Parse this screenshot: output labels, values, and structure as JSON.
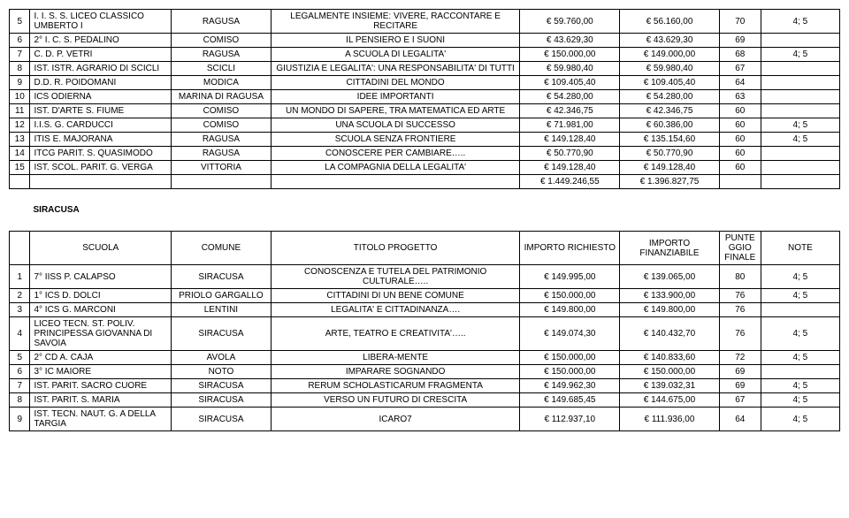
{
  "table1": {
    "rows": [
      {
        "n": "5",
        "sch": "I. I. S. S. LICEO CLASSICO  UMBERTO   I",
        "com": "RAGUSA",
        "tit": "LEGALMENTE   INSIEME: VIVERE, RACCONTARE E RECITARE",
        "i1": "€ 59.760,00",
        "i2": "€ 56.160,00",
        "p": "70",
        "note": "4; 5"
      },
      {
        "n": "6",
        "sch": "2° I. C. S. PEDALINO",
        "com": "COMISO",
        "tit": "IL PENSIERO E I SUONI",
        "i1": "€ 43.629,30",
        "i2": "€ 43.629,30",
        "p": "69",
        "note": ""
      },
      {
        "n": "7",
        "sch": "C. D. P. VETRI",
        "com": "RAGUSA",
        "tit": "A SCUOLA DI LEGALITA'",
        "i1": "€ 150.000,00",
        "i2": "€ 149.000,00",
        "p": "68",
        "note": "4; 5"
      },
      {
        "n": "8",
        "sch": "IST. ISTR. AGRARIO DI SCICLI",
        "com": "SCICLI",
        "tit": "GIUSTIZIA E LEGALITA':  UNA RESPONSABILITA' DI TUTTI",
        "i1": "€ 59.980,40",
        "i2": "€ 59.980,40",
        "p": "67",
        "note": ""
      },
      {
        "n": "9",
        "sch": "D.D. R. POIDOMANI",
        "com": "MODICA",
        "tit": "CITTADINI DEL MONDO",
        "i1": "€ 109.405,40",
        "i2": "€ 109.405,40",
        "p": "64",
        "note": ""
      },
      {
        "n": "10",
        "sch": "ICS ODIERNA",
        "com": "MARINA DI RAGUSA",
        "tit": "IDEE IMPORTANTI",
        "i1": "€ 54.280,00",
        "i2": "€ 54.280,00",
        "p": "63",
        "note": ""
      },
      {
        "n": "11",
        "sch": "IST. D'ARTE S. FIUME",
        "com": "COMISO",
        "tit": "UN MONDO DI SAPERE, TRA MATEMATICA ED ARTE",
        "i1": "€ 42.346,75",
        "i2": "€ 42.346,75",
        "p": "60",
        "note": ""
      },
      {
        "n": "12",
        "sch": "I.I.S. G. CARDUCCI",
        "com": "COMISO",
        "tit": "UNA SCUOLA DI SUCCESSO",
        "i1": "€ 71.981,00",
        "i2": "€ 60.386,00",
        "p": "60",
        "note": "4; 5"
      },
      {
        "n": "13",
        "sch": "ITIS  E. MAJORANA",
        "com": "RAGUSA",
        "tit": "SCUOLA SENZA FRONTIERE",
        "i1": "€ 149.128,40",
        "i2": "€ 135.154,60",
        "p": "60",
        "note": "4; 5"
      },
      {
        "n": "14",
        "sch": "ITCG PARIT. S. QUASIMODO",
        "com": "RAGUSA",
        "tit": "CONOSCERE PER CAMBIARE…..",
        "i1": "€ 50.770,90",
        "i2": "€ 50.770,90",
        "p": "60",
        "note": ""
      },
      {
        "n": "15",
        "sch": "IST. SCOL. PARIT. G. VERGA",
        "com": "VITTORIA",
        "tit": "LA COMPAGNIA DELLA LEGALITA'",
        "i1": "€ 149.128,40",
        "i2": "€ 149.128,40",
        "p": "60",
        "note": ""
      }
    ],
    "totals": {
      "i1": "€ 1.449.246,55",
      "i2": "€ 1.396.827,75"
    }
  },
  "section2_label": "SIRACUSA",
  "table2": {
    "headers": {
      "sch": "SCUOLA",
      "com": "COMUNE",
      "tit": "TITOLO PROGETTO",
      "i1": "IMPORTO RICHIESTO",
      "i2": "IMPORTO FINANZIABILE",
      "p": "PUNTEGGIO FINALE",
      "note": "NOTE"
    },
    "rows": [
      {
        "n": "1",
        "sch": "7° IISS  P. CALAPSO",
        "com": "SIRACUSA",
        "tit": "CONOSCENZA E TUTELA DEL PATRIMONIO CULTURALE…..",
        "i1": "€ 149.995,00",
        "i2": "€ 139.065,00",
        "p": "80",
        "note": "4; 5"
      },
      {
        "n": "2",
        "sch": "1° ICS    D. DOLCI",
        "com": "PRIOLO GARGALLO",
        "tit": "CITTADINI DI UN BENE COMUNE",
        "i1": "€ 150.000,00",
        "i2": "€ 133.900,00",
        "p": "76",
        "note": "4; 5"
      },
      {
        "n": "3",
        "sch": "4° ICS  G. MARCONI",
        "com": "LENTINI",
        "tit": "LEGALITA' E CITTADINANZA….",
        "i1": "€ 149.800,00",
        "i2": "€ 149.800,00",
        "p": "76",
        "note": ""
      },
      {
        "n": "4",
        "sch": "LICEO TECN. ST. POLIV. PRINCIPESSA GIOVANNA DI SAVOIA",
        "com": "SIRACUSA",
        "tit": "ARTE, TEATRO E CREATIVITA'…..",
        "i1": "€ 149.074,30",
        "i2": "€ 140.432,70",
        "p": "76",
        "note": "4; 5"
      },
      {
        "n": "5",
        "sch": "2° CD  A. CAJA",
        "com": "AVOLA",
        "tit": "LIBERA-MENTE",
        "i1": "€ 150.000,00",
        "i2": "€ 140.833,60",
        "p": "72",
        "note": "4; 5"
      },
      {
        "n": "6",
        "sch": "3° IC  MAIORE",
        "com": "NOTO",
        "tit": "IMPARARE SOGNANDO",
        "i1": "€ 150.000,00",
        "i2": "€ 150.000,00",
        "p": "69",
        "note": ""
      },
      {
        "n": "7",
        "sch": "IST. PARIT. SACRO CUORE",
        "com": "SIRACUSA",
        "tit": "RERUM SCHOLASTICARUM FRAGMENTA",
        "i1": "€ 149.962,30",
        "i2": "€ 139.032,31",
        "p": "69",
        "note": "4; 5"
      },
      {
        "n": "8",
        "sch": "IST. PARIT. S. MARIA",
        "com": "SIRACUSA",
        "tit": "VERSO UN FUTURO DI CRESCITA",
        "i1": "€ 149.685,45",
        "i2": "€ 144.675,00",
        "p": "67",
        "note": "4; 5"
      },
      {
        "n": "9",
        "sch": "IST. TECN. NAUT.  G. A DELLA TARGIA",
        "com": "SIRACUSA",
        "tit": "ICARO7",
        "i1": "€ 112.937,10",
        "i2": "€ 111.936,00",
        "p": "64",
        "note": "4; 5"
      }
    ]
  }
}
